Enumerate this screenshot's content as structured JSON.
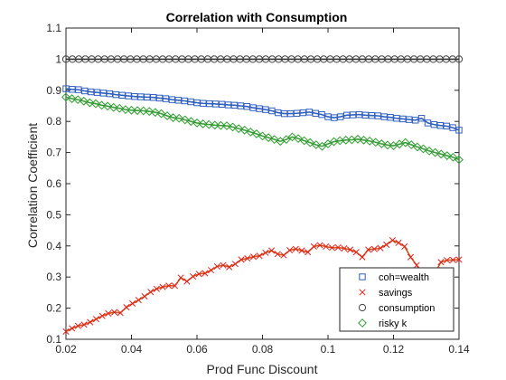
{
  "chart_data": {
    "type": "line",
    "title": "Correlation with Consumption",
    "xlabel": "Prod Func Discount",
    "ylabel": "Correlation Coefficient",
    "xlim": [
      0.02,
      0.14
    ],
    "ylim": [
      0.1,
      1.1
    ],
    "xticks": [
      0.02,
      0.04,
      0.06,
      0.08,
      0.1,
      0.12,
      0.14
    ],
    "xtick_labels": [
      "0.02",
      "0.04",
      "0.06",
      "0.08",
      "0.1",
      "0.12",
      "0.14"
    ],
    "yticks": [
      0.1,
      0.2,
      0.3,
      0.4,
      0.5,
      0.6,
      0.7,
      0.8,
      0.9,
      1,
      1.1
    ],
    "ytick_labels": [
      "0.1",
      "0.2",
      "0.3",
      "0.4",
      "0.5",
      "0.6",
      "0.7",
      "0.8",
      "0.9",
      "1",
      "1.1"
    ],
    "grid": false,
    "legend_position": "lower-right",
    "x_start": 0.02,
    "x_step": 0.002,
    "series": [
      {
        "name": "coh=wealth",
        "color": "#0072BD",
        "marker": "square",
        "values": [
          0.905,
          0.903,
          0.902,
          0.898,
          0.895,
          0.893,
          0.891,
          0.889,
          0.886,
          0.884,
          0.882,
          0.88,
          0.879,
          0.878,
          0.877,
          0.875,
          0.873,
          0.87,
          0.868,
          0.866,
          0.863,
          0.86,
          0.858,
          0.857,
          0.856,
          0.855,
          0.853,
          0.852,
          0.85,
          0.848,
          0.844,
          0.841,
          0.838,
          0.834,
          0.828,
          0.825,
          0.825,
          0.826,
          0.828,
          0.83,
          0.826,
          0.822,
          0.815,
          0.812,
          0.815,
          0.82,
          0.821,
          0.822,
          0.82,
          0.819,
          0.818,
          0.815,
          0.813,
          0.81,
          0.808,
          0.806,
          0.804,
          0.81,
          0.795,
          0.79,
          0.787,
          0.785,
          0.78,
          0.772
        ]
      },
      {
        "name": "savings",
        "color": "#D95319",
        "marker": "x",
        "values": [
          0.125,
          0.135,
          0.143,
          0.147,
          0.155,
          0.165,
          0.175,
          0.183,
          0.187,
          0.185,
          0.203,
          0.215,
          0.226,
          0.238,
          0.252,
          0.262,
          0.268,
          0.272,
          0.272,
          0.298,
          0.286,
          0.302,
          0.31,
          0.312,
          0.322,
          0.334,
          0.338,
          0.332,
          0.342,
          0.356,
          0.36,
          0.365,
          0.368,
          0.378,
          0.385,
          0.374,
          0.37,
          0.386,
          0.39,
          0.385,
          0.38,
          0.398,
          0.402,
          0.398,
          0.394,
          0.395,
          0.392,
          0.388,
          0.38,
          0.364,
          0.388,
          0.39,
          0.393,
          0.404,
          0.418,
          0.41,
          0.398,
          0.364,
          0.338,
          0.312,
          0.308,
          0.312,
          0.348,
          0.354,
          0.355,
          0.356
        ]
      },
      {
        "name": "consumption",
        "color": "#EDB120",
        "marker": "circle",
        "values": [
          1,
          1,
          1,
          1,
          1,
          1,
          1,
          1,
          1,
          1,
          1,
          1,
          1,
          1,
          1,
          1,
          1,
          1,
          1,
          1,
          1,
          1,
          1,
          1,
          1,
          1,
          1,
          1,
          1,
          1,
          1,
          1,
          1,
          1,
          1,
          1,
          1,
          1,
          1,
          1,
          1,
          1,
          1,
          1,
          1,
          1,
          1,
          1,
          1,
          1,
          1,
          1,
          1,
          1,
          1,
          1,
          1,
          1,
          1,
          1,
          1,
          1
        ]
      },
      {
        "name": "risky k",
        "color": "#77AC30",
        "marker": "diamond",
        "values": [
          0.878,
          0.873,
          0.87,
          0.865,
          0.86,
          0.857,
          0.852,
          0.849,
          0.845,
          0.842,
          0.838,
          0.836,
          0.835,
          0.834,
          0.832,
          0.829,
          0.825,
          0.818,
          0.812,
          0.81,
          0.805,
          0.8,
          0.795,
          0.792,
          0.79,
          0.788,
          0.787,
          0.786,
          0.782,
          0.777,
          0.772,
          0.766,
          0.76,
          0.753,
          0.748,
          0.742,
          0.736,
          0.742,
          0.75,
          0.745,
          0.738,
          0.732,
          0.725,
          0.72,
          0.728,
          0.735,
          0.738,
          0.74,
          0.741,
          0.743,
          0.74,
          0.737,
          0.733,
          0.728,
          0.724,
          0.722,
          0.727,
          0.732,
          0.725,
          0.718,
          0.712,
          0.705,
          0.7,
          0.695,
          0.69,
          0.685,
          0.677
        ]
      }
    ]
  }
}
